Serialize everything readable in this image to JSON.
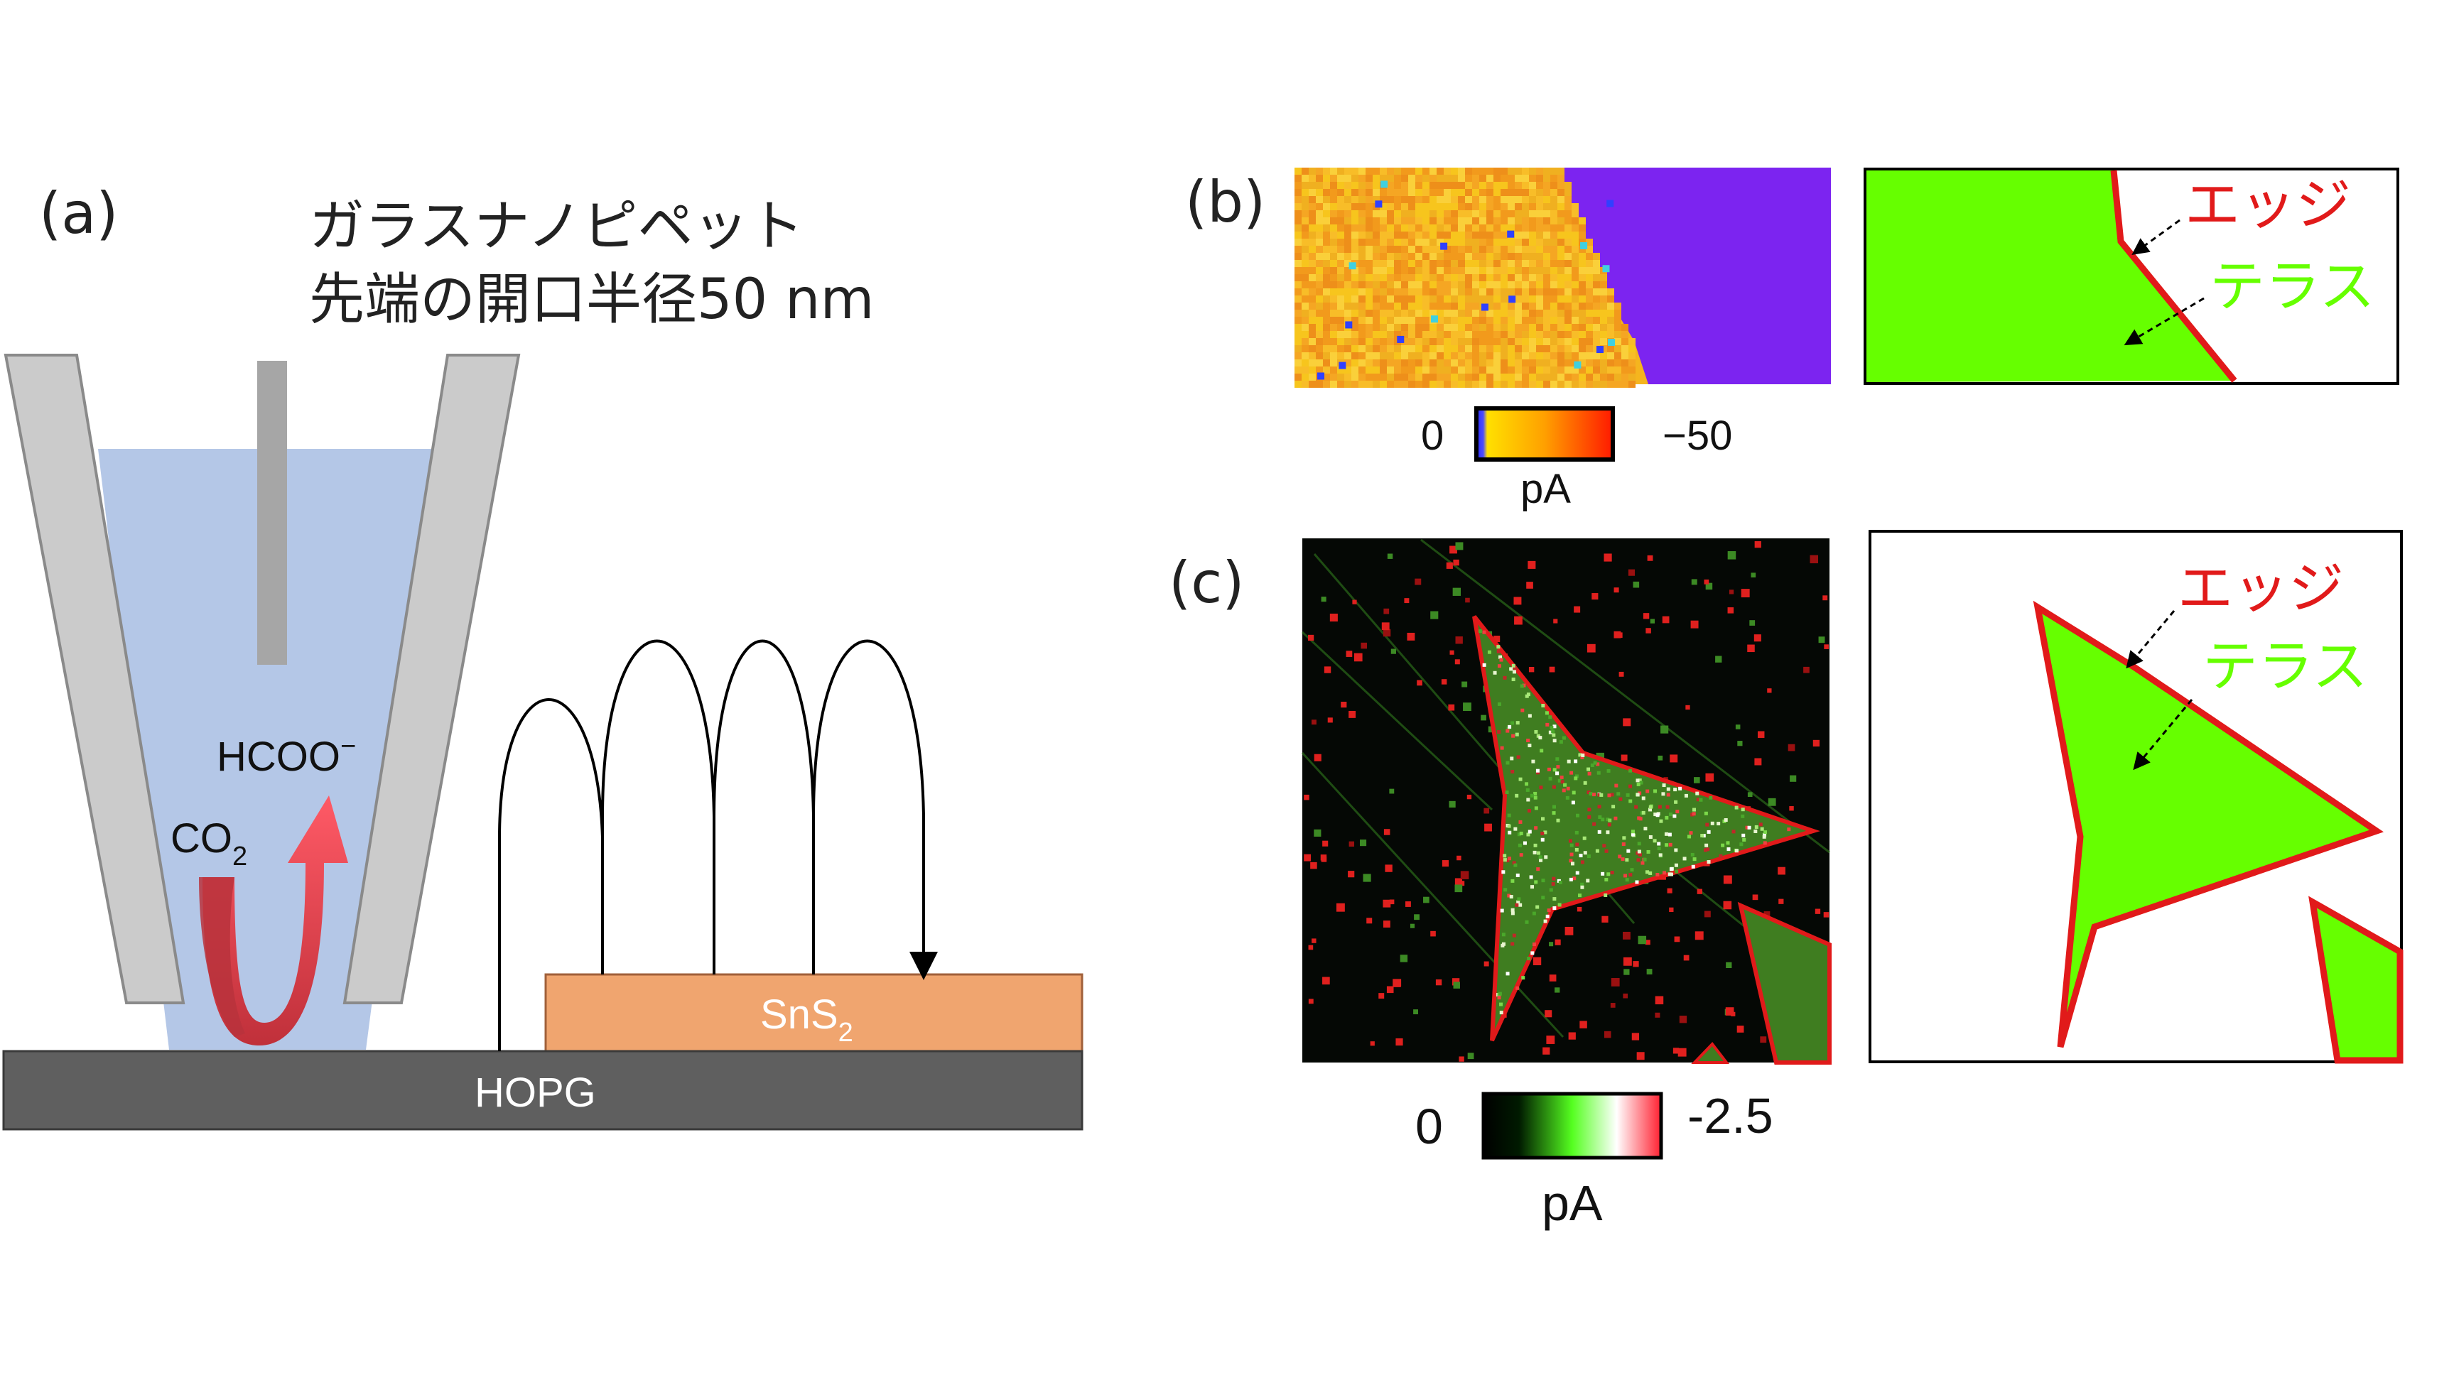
{
  "panel_a": {
    "label": "(a)",
    "pipette_title": "ガラスナノピペット",
    "pipette_subtitle": "先端の開口半径50 nm",
    "product_label": "HCOO",
    "product_charge": "−",
    "reactant_label": "CO",
    "reactant_subscript": "2",
    "sample_label": "SnS",
    "sample_subscript": "2",
    "substrate_label": "HOPG"
  },
  "panel_b": {
    "label": "(b)",
    "colorbar_min": "0",
    "colorbar_max": "−50",
    "colorbar_unit": "pA",
    "edge_label": "エッジ",
    "terrace_label": "テラス"
  },
  "panel_c": {
    "label": "(c)",
    "colorbar_min": "0",
    "colorbar_max": "-2.5",
    "colorbar_unit": "pA",
    "edge_label": "エッジ",
    "terrace_label": "テラス"
  },
  "colors": {
    "glass": "#cbcbcb",
    "electrolyte": "#b4c7e7",
    "electrode": "#a6a6a6",
    "sns2": "#f0a56f",
    "hopg": "#5f5f5f",
    "arrow": "#ff4b5c",
    "edge_red": "#e11a1a",
    "terrace_green": "#66ff00",
    "map_b_low": "#f6c21e",
    "map_b_high": "#7c24f0"
  }
}
